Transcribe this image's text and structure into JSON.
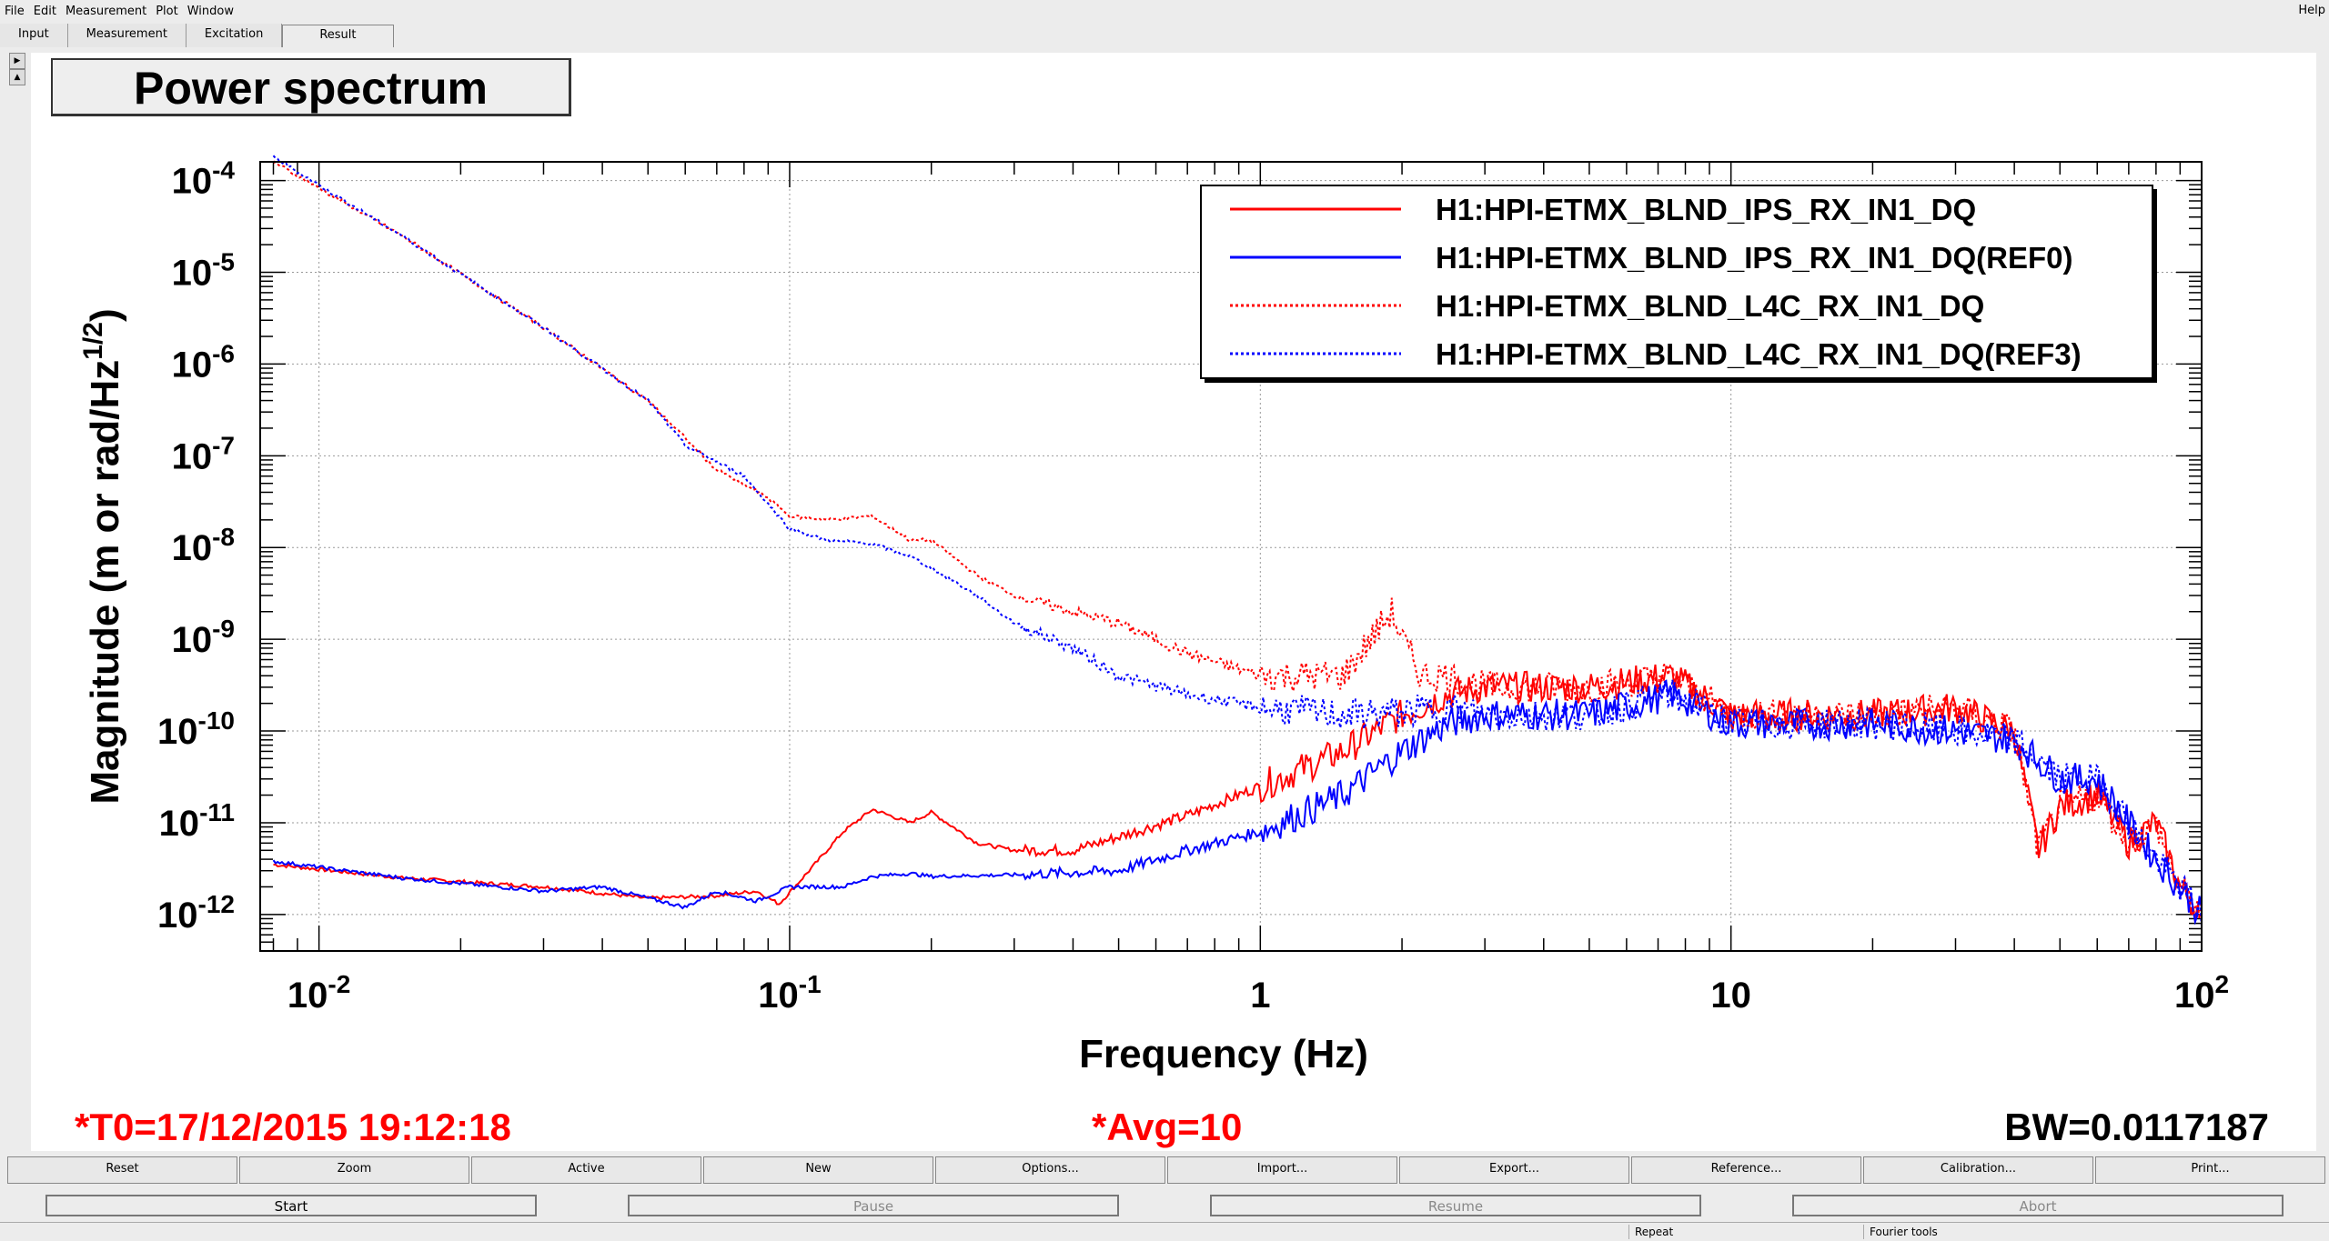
{
  "menu": {
    "items": [
      "File",
      "Edit",
      "Measurement",
      "Plot",
      "Window"
    ],
    "help": "Help"
  },
  "tabs": [
    "Input",
    "Measurement",
    "Excitation",
    "Result"
  ],
  "plot": {
    "title": "Power spectrum",
    "footer": {
      "t0": "*T0=17/12/2015 19:12:18",
      "avg": "*Avg=10",
      "bw": "BW=0.0117187"
    }
  },
  "chart_data": {
    "type": "line",
    "xlabel": "Frequency (Hz)",
    "ylabel": "Magnitude (m or rad/Hz^(1/2))",
    "xscale": "log",
    "yscale": "log",
    "xlim": [
      0.0075,
      100
    ],
    "ylim": [
      4e-13,
      0.00016
    ],
    "grid": true,
    "legend_position": "top-right",
    "x_tick_labels": [
      "10-2",
      "10-1",
      "1",
      "10",
      "102"
    ],
    "y_tick_labels": [
      "10-12",
      "10-11",
      "10-10",
      "10-9",
      "10-8",
      "10-7",
      "10-6",
      "10-5",
      "10-4"
    ],
    "series": [
      {
        "name": "H1:HPI-ETMX_BLND_IPS_RX_IN1_DQ",
        "color": "#ff0000",
        "style": "solid",
        "x": [
          0.008,
          0.015,
          0.03,
          0.05,
          0.07,
          0.085,
          0.095,
          0.11,
          0.13,
          0.15,
          0.18,
          0.2,
          0.25,
          0.3,
          0.4,
          0.5,
          0.7,
          1,
          1.5,
          2,
          2.5,
          3,
          5,
          7.5,
          10,
          20,
          30,
          40,
          45,
          50,
          60,
          70,
          80,
          90,
          100
        ],
        "y": [
          3.5e-12,
          2.5e-12,
          2e-12,
          1.5e-12,
          1.6e-12,
          1.8e-12,
          1.3e-12,
          3e-12,
          8e-12,
          1.4e-11,
          1e-11,
          1.3e-11,
          6e-12,
          5e-12,
          5e-12,
          7e-12,
          1.2e-11,
          2.5e-11,
          6e-11,
          1.5e-10,
          2.5e-10,
          3e-10,
          3e-10,
          4e-10,
          1.5e-10,
          1.5e-10,
          1.8e-10,
          1e-10,
          5e-12,
          1.5e-11,
          2e-11,
          6e-12,
          1e-11,
          2e-12,
          1e-12
        ]
      },
      {
        "name": "H1:HPI-ETMX_BLND_IPS_RX_IN1_DQ(REF0)",
        "color": "#0000ff",
        "style": "solid",
        "x": [
          0.008,
          0.015,
          0.03,
          0.04,
          0.06,
          0.07,
          0.085,
          0.1,
          0.13,
          0.15,
          0.18,
          0.2,
          0.3,
          0.5,
          0.7,
          1,
          1.5,
          2,
          2.5,
          3,
          5,
          7.5,
          10,
          20,
          30,
          40,
          50,
          60,
          70,
          80,
          90,
          100
        ],
        "y": [
          3.8e-12,
          2.5e-12,
          1.8e-12,
          2e-12,
          1.2e-12,
          1.8e-12,
          1.4e-12,
          2e-12,
          2e-12,
          2.6e-12,
          2.8e-12,
          2.6e-12,
          2.7e-12,
          3e-12,
          5e-12,
          8e-12,
          2e-11,
          6e-11,
          1.2e-10,
          1.5e-10,
          1.5e-10,
          2.5e-10,
          1.2e-10,
          1.2e-10,
          1e-10,
          8e-11,
          3e-11,
          3e-11,
          1e-11,
          4e-12,
          2e-12,
          1e-12
        ]
      },
      {
        "name": "H1:HPI-ETMX_BLND_L4C_RX_IN1_DQ",
        "color": "#ff0000",
        "style": "dotted",
        "x": [
          0.008,
          0.015,
          0.03,
          0.05,
          0.07,
          0.09,
          0.1,
          0.12,
          0.15,
          0.18,
          0.2,
          0.25,
          0.3,
          0.4,
          0.5,
          0.7,
          1,
          1.5,
          1.9,
          2,
          2.2,
          2.5,
          3,
          5,
          7.5,
          10,
          20,
          30,
          40,
          45,
          50,
          60,
          70,
          80,
          90,
          100
        ],
        "y": [
          0.00016,
          2.5e-05,
          2.5e-06,
          4e-07,
          7e-08,
          3.5e-08,
          2.2e-08,
          2e-08,
          2.2e-08,
          1.2e-08,
          1.2e-08,
          5e-09,
          3e-09,
          2e-09,
          1.5e-09,
          7e-10,
          4e-10,
          4e-10,
          2e-09,
          1e-09,
          4e-10,
          4e-10,
          3e-10,
          3e-10,
          4e-10,
          1.5e-10,
          1.5e-10,
          1.8e-10,
          1e-10,
          5e-12,
          1.5e-11,
          2e-11,
          6e-12,
          1e-11,
          2e-12,
          1e-12
        ]
      },
      {
        "name": "H1:HPI-ETMX_BLND_L4C_RX_IN1_DQ(REF3)",
        "color": "#0000ff",
        "style": "dotted",
        "x": [
          0.008,
          0.015,
          0.03,
          0.05,
          0.06,
          0.08,
          0.1,
          0.12,
          0.15,
          0.18,
          0.2,
          0.25,
          0.3,
          0.4,
          0.5,
          0.7,
          1,
          1.5,
          2,
          2.5,
          3,
          5,
          7.5,
          10,
          20,
          30,
          40,
          50,
          60,
          70,
          80,
          90,
          100
        ],
        "y": [
          0.00018,
          2.5e-05,
          2.5e-06,
          4e-07,
          1.3e-07,
          6e-08,
          1.6e-08,
          1.2e-08,
          1.1e-08,
          8e-09,
          6e-09,
          3e-09,
          1.5e-09,
          8e-10,
          4e-10,
          2.5e-10,
          1.8e-10,
          1.5e-10,
          1.6e-10,
          1.8e-10,
          1.5e-10,
          1.5e-10,
          2.5e-10,
          1.2e-10,
          1.2e-10,
          1e-10,
          8e-11,
          3e-11,
          3e-11,
          1e-11,
          4e-12,
          2e-12,
          1e-12
        ]
      }
    ]
  },
  "controls": {
    "row1": [
      "Reset",
      "Zoom",
      "Active",
      "New",
      "Options...",
      "Import...",
      "Export...",
      "Reference...",
      "Calibration...",
      "Print..."
    ],
    "start": "Start",
    "pause": "Pause",
    "resume": "Resume",
    "abort": "Abort"
  },
  "status": {
    "repeat": "Repeat",
    "fourier": "Fourier tools"
  }
}
